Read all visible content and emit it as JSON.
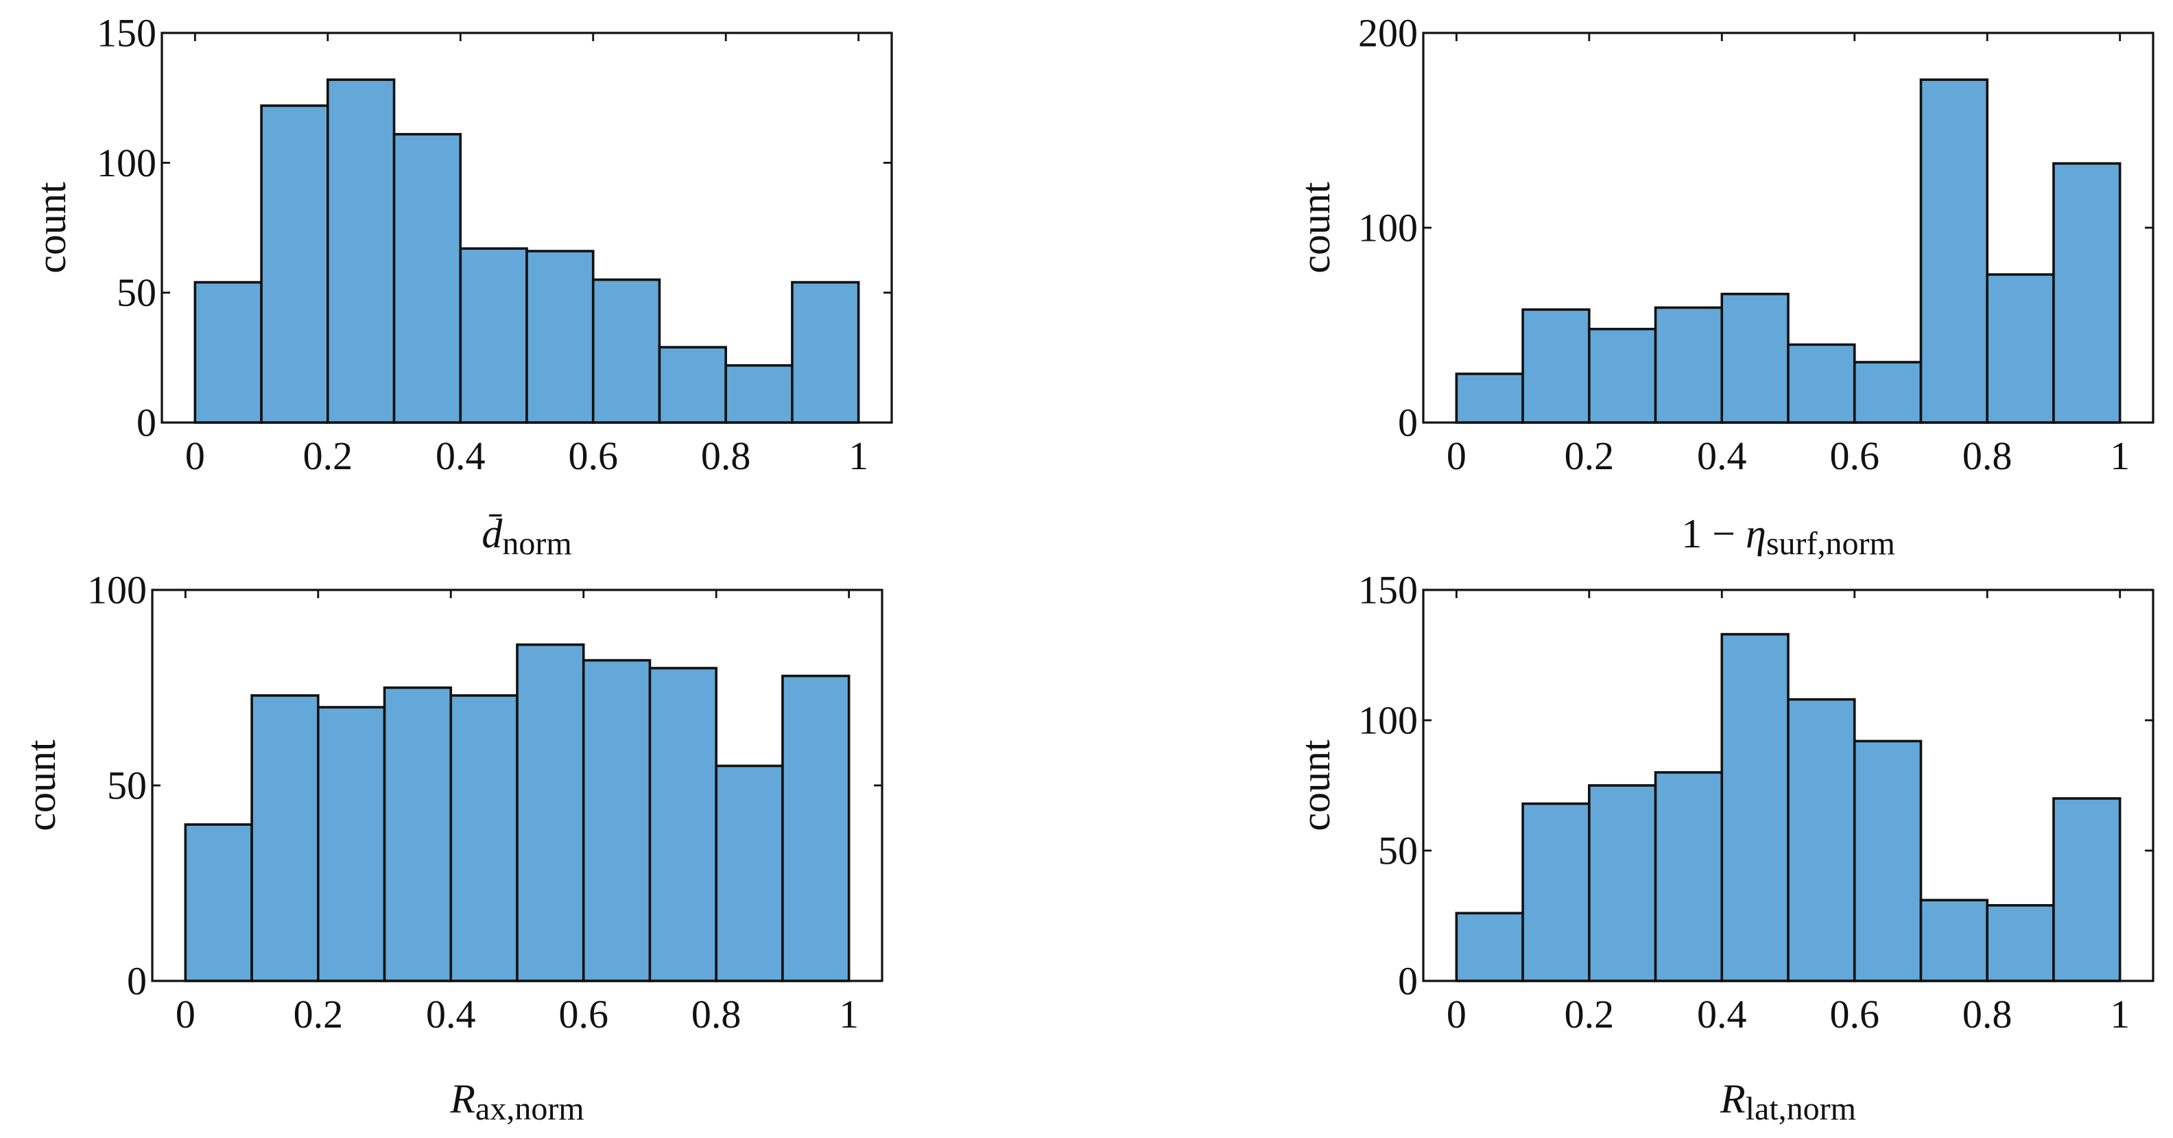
{
  "figure_title": "",
  "colors": {
    "bar_fill": "#63a8d8",
    "bar_edge": "#111111",
    "axis": "#111111",
    "background": "#ffffff"
  },
  "chart_data": [
    {
      "type": "bar",
      "title": "",
      "xlabel": "d̄norm",
      "xlabel_parts": [
        {
          "text": "d̄",
          "style": "math"
        },
        {
          "text": "norm",
          "style": "sub"
        }
      ],
      "ylabel": "count",
      "bin_edges": [
        0,
        0.1,
        0.2,
        0.3,
        0.4,
        0.5,
        0.6,
        0.7,
        0.8,
        0.9,
        1.0
      ],
      "values": [
        54,
        122,
        132,
        111,
        67,
        66,
        55,
        29,
        22,
        54
      ],
      "xlim": [
        -0.05,
        1.05
      ],
      "ylim": [
        0,
        150
      ],
      "xticks": [
        0,
        0.2,
        0.4,
        0.6,
        0.8,
        1
      ],
      "xtick_labels": [
        "0",
        "0.2",
        "0.4",
        "0.6",
        "0.8",
        "1"
      ],
      "yticks": [
        0,
        50,
        100,
        150
      ],
      "ytick_labels": [
        "0",
        "50",
        "100",
        "150"
      ],
      "grid": false,
      "legend": "none"
    },
    {
      "type": "bar",
      "title": "",
      "xlabel": "1 − ηsurf,norm",
      "xlabel_parts": [
        {
          "text": "1 − ",
          "style": "normal"
        },
        {
          "text": "η",
          "style": "math"
        },
        {
          "text": "surf,norm",
          "style": "sub"
        }
      ],
      "ylabel": "count",
      "bin_edges": [
        0,
        0.1,
        0.2,
        0.3,
        0.4,
        0.5,
        0.6,
        0.7,
        0.8,
        0.9,
        1.0
      ],
      "values": [
        25,
        58,
        48,
        59,
        66,
        40,
        31,
        176,
        76,
        133
      ],
      "xlim": [
        -0.05,
        1.05
      ],
      "ylim": [
        0,
        200
      ],
      "xticks": [
        0,
        0.2,
        0.4,
        0.6,
        0.8,
        1
      ],
      "xtick_labels": [
        "0",
        "0.2",
        "0.4",
        "0.6",
        "0.8",
        "1"
      ],
      "yticks": [
        0,
        100,
        200
      ],
      "ytick_labels": [
        "0",
        "100",
        "200"
      ],
      "grid": false,
      "legend": "none"
    },
    {
      "type": "bar",
      "title": "",
      "xlabel": "Rax,norm",
      "xlabel_parts": [
        {
          "text": "R",
          "style": "math"
        },
        {
          "text": "ax,norm",
          "style": "sub"
        }
      ],
      "ylabel": "count",
      "bin_edges": [
        0,
        0.1,
        0.2,
        0.3,
        0.4,
        0.5,
        0.6,
        0.7,
        0.8,
        0.9,
        1.0
      ],
      "values": [
        40,
        73,
        70,
        75,
        73,
        86,
        82,
        80,
        55,
        78
      ],
      "xlim": [
        -0.05,
        1.05
      ],
      "ylim": [
        0,
        100
      ],
      "xticks": [
        0,
        0.2,
        0.4,
        0.6,
        0.8,
        1
      ],
      "xtick_labels": [
        "0",
        "0.2",
        "0.4",
        "0.6",
        "0.8",
        "1"
      ],
      "yticks": [
        0,
        50,
        100
      ],
      "ytick_labels": [
        "0",
        "50",
        "100"
      ],
      "grid": false,
      "legend": "none"
    },
    {
      "type": "bar",
      "title": "",
      "xlabel": "Rlat,norm",
      "xlabel_parts": [
        {
          "text": "R",
          "style": "math"
        },
        {
          "text": "lat,norm",
          "style": "sub"
        }
      ],
      "ylabel": "count",
      "bin_edges": [
        0,
        0.1,
        0.2,
        0.3,
        0.4,
        0.5,
        0.6,
        0.7,
        0.8,
        0.9,
        1.0
      ],
      "values": [
        26,
        68,
        75,
        80,
        133,
        108,
        92,
        31,
        29,
        70
      ],
      "xlim": [
        -0.05,
        1.05
      ],
      "ylim": [
        0,
        150
      ],
      "xticks": [
        0,
        0.2,
        0.4,
        0.6,
        0.8,
        1
      ],
      "xtick_labels": [
        "0",
        "0.2",
        "0.4",
        "0.6",
        "0.8",
        "1"
      ],
      "yticks": [
        0,
        50,
        100,
        150
      ],
      "ytick_labels": [
        "0",
        "50",
        "100",
        "150"
      ],
      "grid": false,
      "legend": "none"
    }
  ]
}
